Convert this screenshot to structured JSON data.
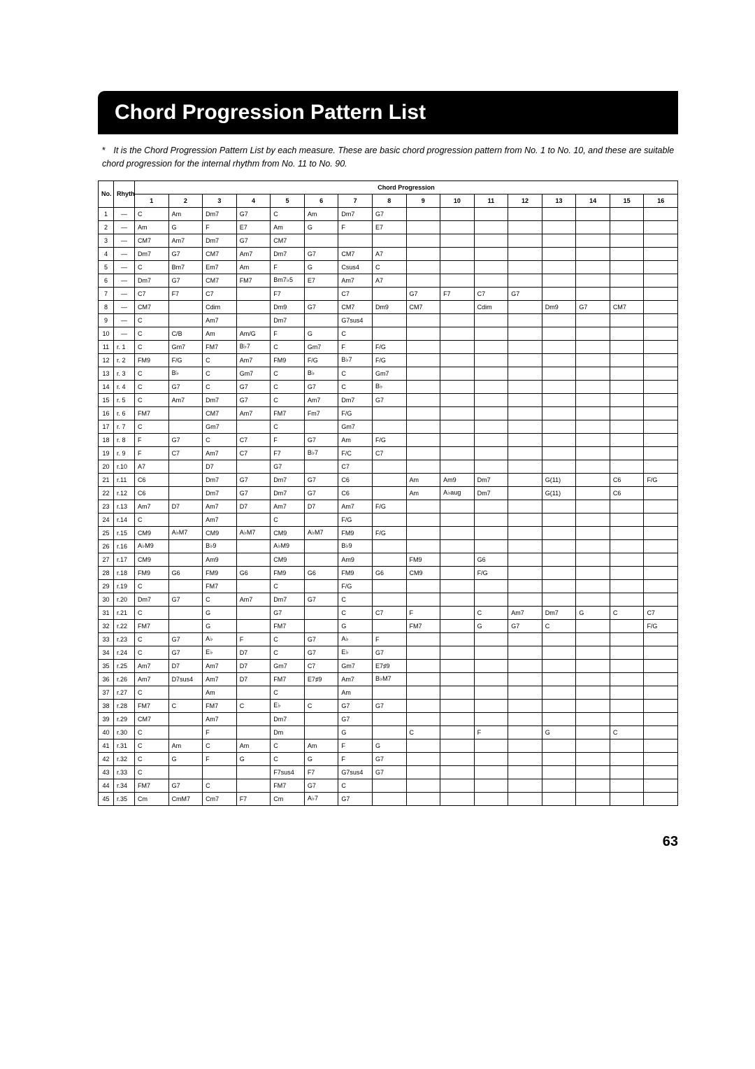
{
  "title": "Chord Progression Pattern List",
  "note_prefix": "*",
  "note": "It is the Chord Progression Pattern List by each measure. These are basic chord progression pattern from No. 1 to No. 10, and these are suitable chord progression for the internal rhythm from No. 11 to No. 90.",
  "page_number": "63",
  "header": {
    "no": "No.",
    "rhythm_no": "Rhythm No.",
    "chord_progression": "Chord Progression",
    "cols": [
      "1",
      "2",
      "3",
      "4",
      "5",
      "6",
      "7",
      "8",
      "9",
      "10",
      "11",
      "12",
      "13",
      "14",
      "15",
      "16"
    ]
  },
  "rows": [
    {
      "no": "1",
      "r": "—",
      "c": [
        "C",
        "Am",
        "Dm7",
        "G7",
        "C",
        "Am",
        "Dm7",
        "G7",
        "",
        "",
        "",
        "",
        "",
        "",
        "",
        ""
      ]
    },
    {
      "no": "2",
      "r": "—",
      "c": [
        "Am",
        "G",
        "F",
        "E7",
        "Am",
        "G",
        "F",
        "E7",
        "",
        "",
        "",
        "",
        "",
        "",
        "",
        ""
      ]
    },
    {
      "no": "3",
      "r": "—",
      "c": [
        "CM7",
        "Am7",
        "Dm7",
        "G7",
        "CM7",
        "",
        "",
        "",
        "",
        "",
        "",
        "",
        "",
        "",
        "",
        ""
      ]
    },
    {
      "no": "4",
      "r": "—",
      "c": [
        "Dm7",
        "G7",
        "CM7",
        "Am7",
        "Dm7",
        "G7",
        "CM7",
        "A7",
        "",
        "",
        "",
        "",
        "",
        "",
        "",
        ""
      ]
    },
    {
      "no": "5",
      "r": "—",
      "c": [
        "C",
        "Bm7",
        "Em7",
        "Am",
        "F",
        "G",
        "Csus4",
        "C",
        "",
        "",
        "",
        "",
        "",
        "",
        "",
        ""
      ]
    },
    {
      "no": "6",
      "r": "—",
      "c": [
        "Dm7",
        "G7",
        "CM7",
        "FM7",
        "Bm7♭5",
        "E7",
        "Am7",
        "A7",
        "",
        "",
        "",
        "",
        "",
        "",
        "",
        ""
      ]
    },
    {
      "no": "7",
      "r": "—",
      "c": [
        "C7",
        "F7",
        "C7",
        "",
        "F7",
        "",
        "C7",
        "",
        "G7",
        "F7",
        "C7",
        "G7",
        "",
        "",
        "",
        ""
      ]
    },
    {
      "no": "8",
      "r": "—",
      "c": [
        "CM7",
        "",
        "Cdim",
        "",
        "Dm9",
        "G7",
        "CM7",
        "Dm9",
        "CM7",
        "",
        "Cdim",
        "",
        "Dm9",
        "G7",
        "CM7",
        ""
      ]
    },
    {
      "no": "9",
      "r": "—",
      "c": [
        "C",
        "",
        "Am7",
        "",
        "Dm7",
        "",
        "G7sus4",
        "",
        "",
        "",
        "",
        "",
        "",
        "",
        "",
        ""
      ]
    },
    {
      "no": "10",
      "r": "—",
      "c": [
        "C",
        "C/B",
        "Am",
        "Am/G",
        "F",
        "G",
        "C",
        "",
        "",
        "",
        "",
        "",
        "",
        "",
        "",
        ""
      ]
    },
    {
      "no": "11",
      "r": "r. 1",
      "c": [
        "C",
        "Gm7",
        "FM7",
        "B♭7",
        "C",
        "Gm7",
        "F",
        "F/G",
        "",
        "",
        "",
        "",
        "",
        "",
        "",
        ""
      ]
    },
    {
      "no": "12",
      "r": "r. 2",
      "c": [
        "FM9",
        "F/G",
        "C",
        "Am7",
        "FM9",
        "F/G",
        "B♭7",
        "F/G",
        "",
        "",
        "",
        "",
        "",
        "",
        "",
        ""
      ]
    },
    {
      "no": "13",
      "r": "r. 3",
      "c": [
        "C",
        "B♭",
        "C",
        "Gm7",
        "C",
        "B♭",
        "C",
        "Gm7",
        "",
        "",
        "",
        "",
        "",
        "",
        "",
        ""
      ]
    },
    {
      "no": "14",
      "r": "r. 4",
      "c": [
        "C",
        "G7",
        "C",
        "G7",
        "C",
        "G7",
        "C",
        "B♭",
        "",
        "",
        "",
        "",
        "",
        "",
        "",
        ""
      ]
    },
    {
      "no": "15",
      "r": "r. 5",
      "c": [
        "C",
        "Am7",
        "Dm7",
        "G7",
        "C",
        "Am7",
        "Dm7",
        "G7",
        "",
        "",
        "",
        "",
        "",
        "",
        "",
        ""
      ]
    },
    {
      "no": "16",
      "r": "r. 6",
      "c": [
        "FM7",
        "",
        "CM7",
        "Am7",
        "FM7",
        "Fm7",
        "F/G",
        "",
        "",
        "",
        "",
        "",
        "",
        "",
        "",
        ""
      ]
    },
    {
      "no": "17",
      "r": "r. 7",
      "c": [
        "C",
        "",
        "Gm7",
        "",
        "C",
        "",
        "Gm7",
        "",
        "",
        "",
        "",
        "",
        "",
        "",
        "",
        ""
      ]
    },
    {
      "no": "18",
      "r": "r. 8",
      "c": [
        "F",
        "G7",
        "C",
        "C7",
        "F",
        "G7",
        "Am",
        "F/G",
        "",
        "",
        "",
        "",
        "",
        "",
        "",
        ""
      ]
    },
    {
      "no": "19",
      "r": "r. 9",
      "c": [
        "F",
        "C7",
        "Am7",
        "C7",
        "F7",
        "B♭7",
        "F/C",
        "C7",
        "",
        "",
        "",
        "",
        "",
        "",
        "",
        ""
      ]
    },
    {
      "no": "20",
      "r": "r.10",
      "c": [
        "A7",
        "",
        "D7",
        "",
        "G7",
        "",
        "C7",
        "",
        "",
        "",
        "",
        "",
        "",
        "",
        "",
        ""
      ]
    },
    {
      "no": "21",
      "r": "r.11",
      "c": [
        "C6",
        "",
        "Dm7",
        "G7",
        "Dm7",
        "G7",
        "C6",
        "",
        "Am",
        "Am9",
        "Dm7",
        "",
        "G(11)",
        "",
        "C6",
        "F/G"
      ]
    },
    {
      "no": "22",
      "r": "r.12",
      "c": [
        "C6",
        "",
        "Dm7",
        "G7",
        "Dm7",
        "G7",
        "C6",
        "",
        "Am",
        "A♭aug",
        "Dm7",
        "",
        "G(11)",
        "",
        "C6",
        ""
      ]
    },
    {
      "no": "23",
      "r": "r.13",
      "c": [
        "Am7",
        "D7",
        "Am7",
        "D7",
        "Am7",
        "D7",
        "Am7",
        "F/G",
        "",
        "",
        "",
        "",
        "",
        "",
        "",
        ""
      ]
    },
    {
      "no": "24",
      "r": "r.14",
      "c": [
        "C",
        "",
        "Am7",
        "",
        "C",
        "",
        "F/G",
        "",
        "",
        "",
        "",
        "",
        "",
        "",
        "",
        ""
      ]
    },
    {
      "no": "25",
      "r": "r.15",
      "c": [
        "CM9",
        "A♭M7",
        "CM9",
        "A♭M7",
        "CM9",
        "A♭M7",
        "FM9",
        "F/G",
        "",
        "",
        "",
        "",
        "",
        "",
        "",
        ""
      ]
    },
    {
      "no": "26",
      "r": "r.16",
      "c": [
        "A♭M9",
        "",
        "B♭9",
        "",
        "A♭M9",
        "",
        "B♭9",
        "",
        "",
        "",
        "",
        "",
        "",
        "",
        "",
        ""
      ]
    },
    {
      "no": "27",
      "r": "r.17",
      "c": [
        "CM9",
        "",
        "Am9",
        "",
        "CM9",
        "",
        "Am9",
        "",
        "FM9",
        "",
        "G6",
        "",
        "",
        "",
        "",
        ""
      ]
    },
    {
      "no": "28",
      "r": "r.18",
      "c": [
        "FM9",
        "G6",
        "FM9",
        "G6",
        "FM9",
        "G6",
        "FM9",
        "G6",
        "CM9",
        "",
        "F/G",
        "",
        "",
        "",
        "",
        ""
      ]
    },
    {
      "no": "29",
      "r": "r.19",
      "c": [
        "C",
        "",
        "FM7",
        "",
        "C",
        "",
        "F/G",
        "",
        "",
        "",
        "",
        "",
        "",
        "",
        "",
        ""
      ]
    },
    {
      "no": "30",
      "r": "r.20",
      "c": [
        "Dm7",
        "G7",
        "C",
        "Am7",
        "Dm7",
        "G7",
        "C",
        "",
        "",
        "",
        "",
        "",
        "",
        "",
        "",
        ""
      ]
    },
    {
      "no": "31",
      "r": "r.21",
      "c": [
        "C",
        "",
        "G",
        "",
        "G7",
        "",
        "C",
        "C7",
        "F",
        "",
        "C",
        "Am7",
        "Dm7",
        "G",
        "C",
        "C7"
      ]
    },
    {
      "no": "32",
      "r": "r.22",
      "c": [
        "FM7",
        "",
        "G",
        "",
        "FM7",
        "",
        "G",
        "",
        "FM7",
        "",
        "G",
        "G7",
        "C",
        "",
        "",
        "F/G"
      ]
    },
    {
      "no": "33",
      "r": "r.23",
      "c": [
        "C",
        "G7",
        "A♭",
        "F",
        "C",
        "G7",
        "A♭",
        "F",
        "",
        "",
        "",
        "",
        "",
        "",
        "",
        ""
      ]
    },
    {
      "no": "34",
      "r": "r.24",
      "c": [
        "C",
        "G7",
        "E♭",
        "D7",
        "C",
        "G7",
        "E♭",
        "G7",
        "",
        "",
        "",
        "",
        "",
        "",
        "",
        ""
      ]
    },
    {
      "no": "35",
      "r": "r.25",
      "c": [
        "Am7",
        "D7",
        "Am7",
        "D7",
        "Gm7",
        "C7",
        "Gm7",
        "E7♯9",
        "",
        "",
        "",
        "",
        "",
        "",
        "",
        ""
      ]
    },
    {
      "no": "36",
      "r": "r.26",
      "c": [
        "Am7",
        "D7sus4",
        "Am7",
        "D7",
        "FM7",
        "E7♯9",
        "Am7",
        "B♭M7",
        "",
        "",
        "",
        "",
        "",
        "",
        "",
        ""
      ]
    },
    {
      "no": "37",
      "r": "r.27",
      "c": [
        "C",
        "",
        "Am",
        "",
        "C",
        "",
        "Am",
        "",
        "",
        "",
        "",
        "",
        "",
        "",
        "",
        ""
      ]
    },
    {
      "no": "38",
      "r": "r.28",
      "c": [
        "FM7",
        "C",
        "FM7",
        "C",
        "E♭",
        "C",
        "G7",
        "G7",
        "",
        "",
        "",
        "",
        "",
        "",
        "",
        ""
      ]
    },
    {
      "no": "39",
      "r": "r.29",
      "c": [
        "CM7",
        "",
        "Am7",
        "",
        "Dm7",
        "",
        "G7",
        "",
        "",
        "",
        "",
        "",
        "",
        "",
        "",
        ""
      ]
    },
    {
      "no": "40",
      "r": "r.30",
      "c": [
        "C",
        "",
        "F",
        "",
        "Dm",
        "",
        "G",
        "",
        "C",
        "",
        "F",
        "",
        "G",
        "",
        "C",
        ""
      ]
    },
    {
      "no": "41",
      "r": "r.31",
      "c": [
        "C",
        "Am",
        "C",
        "Am",
        "C",
        "Am",
        "F",
        "G",
        "",
        "",
        "",
        "",
        "",
        "",
        "",
        ""
      ]
    },
    {
      "no": "42",
      "r": "r.32",
      "c": [
        "C",
        "G",
        "F",
        "G",
        "C",
        "G",
        "F",
        "G7",
        "",
        "",
        "",
        "",
        "",
        "",
        "",
        ""
      ]
    },
    {
      "no": "43",
      "r": "r.33",
      "c": [
        "C",
        "",
        "",
        "",
        "F7sus4",
        "F7",
        "G7sus4",
        "G7",
        "",
        "",
        "",
        "",
        "",
        "",
        "",
        ""
      ]
    },
    {
      "no": "44",
      "r": "r.34",
      "c": [
        "FM7",
        "G7",
        "C",
        "",
        "FM7",
        "G7",
        "C",
        "",
        "",
        "",
        "",
        "",
        "",
        "",
        "",
        ""
      ]
    },
    {
      "no": "45",
      "r": "r.35",
      "c": [
        "Cm",
        "CmM7",
        "Cm7",
        "F7",
        "Cm",
        "A♭7",
        "G7",
        "",
        "",
        "",
        "",
        "",
        "",
        "",
        "",
        ""
      ]
    }
  ]
}
